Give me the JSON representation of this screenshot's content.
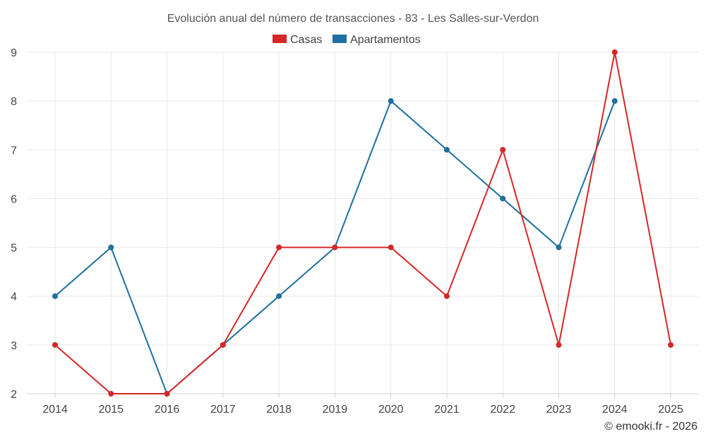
{
  "chart_data": {
    "type": "line",
    "title": "Evolución anual del número de transacciones - 83 - Les Salles-sur-Verdon",
    "categories": [
      "2014",
      "2015",
      "2016",
      "2017",
      "2018",
      "2019",
      "2020",
      "2021",
      "2022",
      "2023",
      "2024",
      "2025"
    ],
    "series": [
      {
        "name": "Casas",
        "color": "#d62728",
        "values": [
          3,
          2,
          2,
          3,
          5,
          5,
          5,
          4,
          7,
          3,
          9,
          3
        ]
      },
      {
        "name": "Apartamentos",
        "color": "#1f6fa0",
        "values": [
          4,
          5,
          2,
          3,
          4,
          5,
          8,
          7,
          6,
          5,
          8,
          null
        ]
      }
    ],
    "ylim": [
      2,
      9
    ],
    "yticks": [
      "2",
      "3",
      "4",
      "5",
      "6",
      "7",
      "8",
      "9"
    ],
    "xlabel": "",
    "ylabel": "",
    "grid": true,
    "legend": "top-center"
  },
  "credit": "© emooki.fr - 2026"
}
